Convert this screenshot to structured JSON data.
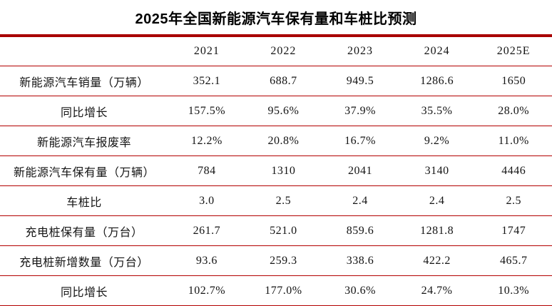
{
  "title": "2025年全国新能源汽车保有量和车桩比预测",
  "colors": {
    "rule_thick": "#A80000",
    "rule_thin": "#B30000",
    "text": "#141414",
    "background": "#FFFFFF"
  },
  "chart_data": {
    "type": "table",
    "title": "2025年全国新能源汽车保有量和车桩比预测",
    "columns": [
      "2021",
      "2022",
      "2023",
      "2024",
      "2025E"
    ],
    "rows": [
      {
        "label": "新能源汽车销量（万辆）",
        "values": [
          "352.1",
          "688.7",
          "949.5",
          "1286.6",
          "1650"
        ]
      },
      {
        "label": "同比增长",
        "values": [
          "157.5%",
          "95.6%",
          "37.9%",
          "35.5%",
          "28.0%"
        ]
      },
      {
        "label": "新能源汽车报废率",
        "values": [
          "12.2%",
          "20.8%",
          "16.7%",
          "9.2%",
          "11.0%"
        ]
      },
      {
        "label": "新能源汽车保有量（万辆）",
        "values": [
          "784",
          "1310",
          "2041",
          "3140",
          "4446"
        ]
      },
      {
        "label": "车桩比",
        "values": [
          "3.0",
          "2.5",
          "2.4",
          "2.4",
          "2.5"
        ]
      },
      {
        "label": "充电桩保有量（万台）",
        "values": [
          "261.7",
          "521.0",
          "859.6",
          "1281.8",
          "1747"
        ]
      },
      {
        "label": "充电桩新增数量（万台）",
        "values": [
          "93.6",
          "259.3",
          "338.6",
          "422.2",
          "465.7"
        ]
      },
      {
        "label": "同比增长",
        "values": [
          "102.7%",
          "177.0%",
          "30.6%",
          "24.7%",
          "10.3%"
        ]
      }
    ]
  }
}
